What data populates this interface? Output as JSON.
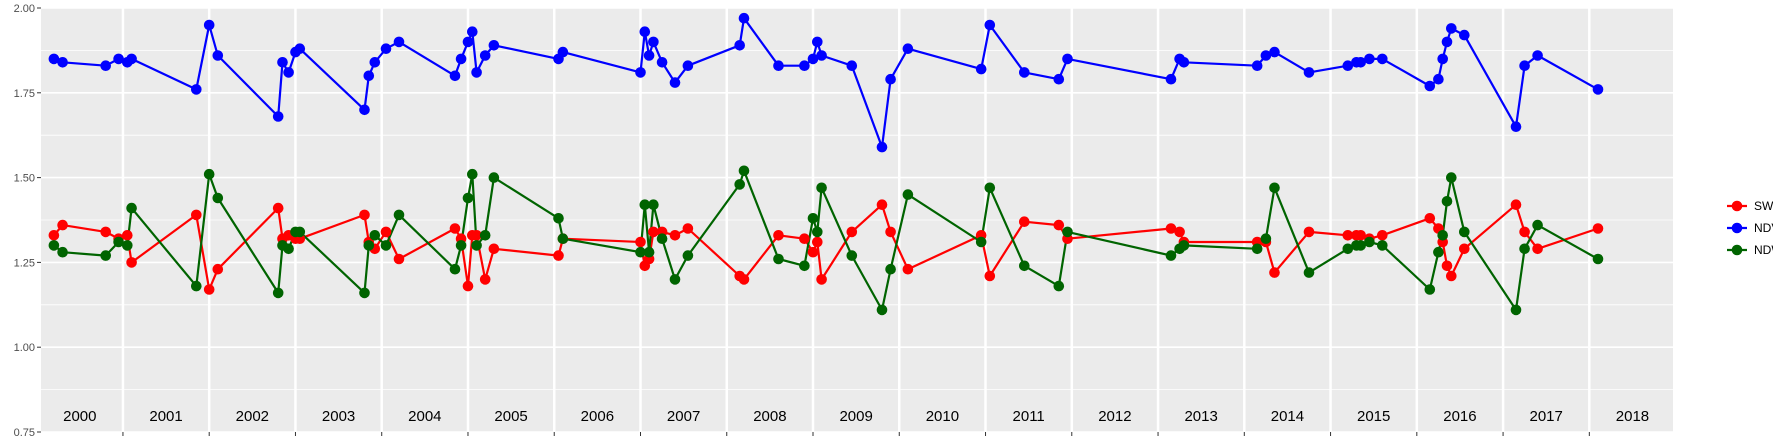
{
  "chart_data": {
    "type": "line",
    "title": "",
    "xlabel": "",
    "ylabel": "",
    "ylim": [
      0.75,
      2.0
    ],
    "xlim": [
      1999.55,
      2018.47
    ],
    "y_ticks": [
      "0.75",
      "1.00",
      "1.25",
      "1.50",
      "1.75",
      "2.00"
    ],
    "x_ticks": [
      "2000",
      "2001",
      "2002",
      "2003",
      "2004",
      "2005",
      "2006",
      "2007",
      "2008",
      "2009",
      "2010",
      "2011",
      "2012",
      "2013",
      "2014",
      "2015",
      "2016",
      "2017",
      "2018"
    ],
    "grid": true,
    "legend_position": "right",
    "series": [
      {
        "name": "SWIR",
        "color": "#ff0000",
        "points": [
          [
            1999.7,
            1.33
          ],
          [
            1999.8,
            1.36
          ],
          [
            2000.3,
            1.34
          ],
          [
            2000.45,
            1.32
          ],
          [
            2000.55,
            1.33
          ],
          [
            2000.6,
            1.25
          ],
          [
            2001.35,
            1.39
          ],
          [
            2001.5,
            1.17
          ],
          [
            2001.6,
            1.23
          ],
          [
            2002.3,
            1.41
          ],
          [
            2002.35,
            1.32
          ],
          [
            2002.42,
            1.33
          ],
          [
            2002.5,
            1.32
          ],
          [
            2002.55,
            1.32
          ],
          [
            2003.3,
            1.39
          ],
          [
            2003.35,
            1.31
          ],
          [
            2003.42,
            1.29
          ],
          [
            2003.55,
            1.34
          ],
          [
            2003.7,
            1.26
          ],
          [
            2004.35,
            1.35
          ],
          [
            2004.42,
            1.32
          ],
          [
            2004.5,
            1.18
          ],
          [
            2004.55,
            1.33
          ],
          [
            2004.6,
            1.33
          ],
          [
            2004.7,
            1.2
          ],
          [
            2004.8,
            1.29
          ],
          [
            2005.55,
            1.27
          ],
          [
            2005.6,
            1.32
          ],
          [
            2006.5,
            1.31
          ],
          [
            2006.55,
            1.24
          ],
          [
            2006.6,
            1.26
          ],
          [
            2006.65,
            1.34
          ],
          [
            2006.75,
            1.34
          ],
          [
            2006.9,
            1.33
          ],
          [
            2007.05,
            1.35
          ],
          [
            2007.65,
            1.21
          ],
          [
            2007.7,
            1.2
          ],
          [
            2008.1,
            1.33
          ],
          [
            2008.4,
            1.32
          ],
          [
            2008.5,
            1.28
          ],
          [
            2008.55,
            1.31
          ],
          [
            2008.6,
            1.2
          ],
          [
            2008.95,
            1.34
          ],
          [
            2009.3,
            1.42
          ],
          [
            2009.4,
            1.34
          ],
          [
            2009.6,
            1.23
          ],
          [
            2010.45,
            1.33
          ],
          [
            2010.55,
            1.21
          ],
          [
            2010.95,
            1.37
          ],
          [
            2011.35,
            1.36
          ],
          [
            2011.45,
            1.32
          ],
          [
            2012.65,
            1.35
          ],
          [
            2012.75,
            1.34
          ],
          [
            2012.8,
            1.31
          ],
          [
            2013.65,
            1.31
          ],
          [
            2013.75,
            1.31
          ],
          [
            2013.85,
            1.22
          ],
          [
            2014.25,
            1.34
          ],
          [
            2014.7,
            1.33
          ],
          [
            2014.8,
            1.33
          ],
          [
            2014.85,
            1.33
          ],
          [
            2014.95,
            1.32
          ],
          [
            2015.1,
            1.33
          ],
          [
            2015.65,
            1.38
          ],
          [
            2015.75,
            1.35
          ],
          [
            2015.8,
            1.31
          ],
          [
            2015.85,
            1.24
          ],
          [
            2015.9,
            1.21
          ],
          [
            2016.05,
            1.29
          ],
          [
            2016.65,
            1.42
          ],
          [
            2016.75,
            1.34
          ],
          [
            2016.9,
            1.29
          ],
          [
            2017.6,
            1.35
          ]
        ]
      },
      {
        "name": "NDVI",
        "color": "#0000ff",
        "points": [
          [
            1999.7,
            1.85
          ],
          [
            1999.8,
            1.84
          ],
          [
            2000.3,
            1.83
          ],
          [
            2000.45,
            1.85
          ],
          [
            2000.55,
            1.84
          ],
          [
            2000.6,
            1.85
          ],
          [
            2001.35,
            1.76
          ],
          [
            2001.5,
            1.95
          ],
          [
            2001.6,
            1.86
          ],
          [
            2002.3,
            1.68
          ],
          [
            2002.35,
            1.84
          ],
          [
            2002.42,
            1.81
          ],
          [
            2002.5,
            1.87
          ],
          [
            2002.55,
            1.88
          ],
          [
            2003.3,
            1.7
          ],
          [
            2003.35,
            1.8
          ],
          [
            2003.42,
            1.84
          ],
          [
            2003.55,
            1.88
          ],
          [
            2003.7,
            1.9
          ],
          [
            2004.35,
            1.8
          ],
          [
            2004.42,
            1.85
          ],
          [
            2004.5,
            1.9
          ],
          [
            2004.55,
            1.93
          ],
          [
            2004.6,
            1.81
          ],
          [
            2004.7,
            1.86
          ],
          [
            2004.8,
            1.89
          ],
          [
            2005.55,
            1.85
          ],
          [
            2005.6,
            1.87
          ],
          [
            2006.5,
            1.81
          ],
          [
            2006.55,
            1.93
          ],
          [
            2006.6,
            1.86
          ],
          [
            2006.65,
            1.9
          ],
          [
            2006.75,
            1.84
          ],
          [
            2006.9,
            1.78
          ],
          [
            2007.05,
            1.83
          ],
          [
            2007.65,
            1.89
          ],
          [
            2007.7,
            1.97
          ],
          [
            2008.1,
            1.83
          ],
          [
            2008.4,
            1.83
          ],
          [
            2008.5,
            1.85
          ],
          [
            2008.55,
            1.9
          ],
          [
            2008.6,
            1.86
          ],
          [
            2008.95,
            1.83
          ],
          [
            2009.3,
            1.59
          ],
          [
            2009.4,
            1.79
          ],
          [
            2009.6,
            1.88
          ],
          [
            2010.45,
            1.82
          ],
          [
            2010.55,
            1.95
          ],
          [
            2010.95,
            1.81
          ],
          [
            2011.35,
            1.79
          ],
          [
            2011.45,
            1.85
          ],
          [
            2012.65,
            1.79
          ],
          [
            2012.75,
            1.85
          ],
          [
            2012.8,
            1.84
          ],
          [
            2013.65,
            1.83
          ],
          [
            2013.75,
            1.86
          ],
          [
            2013.85,
            1.87
          ],
          [
            2014.25,
            1.81
          ],
          [
            2014.7,
            1.83
          ],
          [
            2014.8,
            1.84
          ],
          [
            2014.85,
            1.84
          ],
          [
            2014.95,
            1.85
          ],
          [
            2015.1,
            1.85
          ],
          [
            2015.65,
            1.77
          ],
          [
            2015.75,
            1.79
          ],
          [
            2015.8,
            1.85
          ],
          [
            2015.85,
            1.9
          ],
          [
            2015.9,
            1.94
          ],
          [
            2016.05,
            1.92
          ],
          [
            2016.65,
            1.65
          ],
          [
            2016.75,
            1.83
          ],
          [
            2016.9,
            1.86
          ],
          [
            2017.6,
            1.76
          ]
        ]
      },
      {
        "name": "NDWI",
        "color": "#006400",
        "points": [
          [
            1999.7,
            1.3
          ],
          [
            1999.8,
            1.28
          ],
          [
            2000.3,
            1.27
          ],
          [
            2000.45,
            1.31
          ],
          [
            2000.55,
            1.3
          ],
          [
            2000.6,
            1.41
          ],
          [
            2001.35,
            1.18
          ],
          [
            2001.5,
            1.51
          ],
          [
            2001.6,
            1.44
          ],
          [
            2002.3,
            1.16
          ],
          [
            2002.35,
            1.3
          ],
          [
            2002.42,
            1.29
          ],
          [
            2002.5,
            1.34
          ],
          [
            2002.55,
            1.34
          ],
          [
            2003.3,
            1.16
          ],
          [
            2003.35,
            1.3
          ],
          [
            2003.42,
            1.33
          ],
          [
            2003.55,
            1.3
          ],
          [
            2003.7,
            1.39
          ],
          [
            2004.35,
            1.23
          ],
          [
            2004.42,
            1.3
          ],
          [
            2004.5,
            1.44
          ],
          [
            2004.55,
            1.51
          ],
          [
            2004.6,
            1.3
          ],
          [
            2004.7,
            1.33
          ],
          [
            2004.8,
            1.5
          ],
          [
            2005.55,
            1.38
          ],
          [
            2005.6,
            1.32
          ],
          [
            2006.5,
            1.28
          ],
          [
            2006.55,
            1.42
          ],
          [
            2006.6,
            1.28
          ],
          [
            2006.65,
            1.42
          ],
          [
            2006.75,
            1.32
          ],
          [
            2006.9,
            1.2
          ],
          [
            2007.05,
            1.27
          ],
          [
            2007.65,
            1.48
          ],
          [
            2007.7,
            1.52
          ],
          [
            2008.1,
            1.26
          ],
          [
            2008.4,
            1.24
          ],
          [
            2008.5,
            1.38
          ],
          [
            2008.55,
            1.34
          ],
          [
            2008.6,
            1.47
          ],
          [
            2008.95,
            1.27
          ],
          [
            2009.3,
            1.11
          ],
          [
            2009.4,
            1.23
          ],
          [
            2009.6,
            1.45
          ],
          [
            2010.45,
            1.31
          ],
          [
            2010.55,
            1.47
          ],
          [
            2010.95,
            1.24
          ],
          [
            2011.35,
            1.18
          ],
          [
            2011.45,
            1.34
          ],
          [
            2012.65,
            1.27
          ],
          [
            2012.75,
            1.29
          ],
          [
            2012.8,
            1.3
          ],
          [
            2013.65,
            1.29
          ],
          [
            2013.75,
            1.32
          ],
          [
            2013.85,
            1.47
          ],
          [
            2014.25,
            1.22
          ],
          [
            2014.7,
            1.29
          ],
          [
            2014.8,
            1.3
          ],
          [
            2014.85,
            1.3
          ],
          [
            2014.95,
            1.31
          ],
          [
            2015.1,
            1.3
          ],
          [
            2015.65,
            1.17
          ],
          [
            2015.75,
            1.28
          ],
          [
            2015.8,
            1.33
          ],
          [
            2015.85,
            1.43
          ],
          [
            2015.9,
            1.5
          ],
          [
            2016.05,
            1.34
          ],
          [
            2016.65,
            1.11
          ],
          [
            2016.75,
            1.29
          ],
          [
            2016.9,
            1.36
          ],
          [
            2017.6,
            1.26
          ]
        ]
      }
    ]
  }
}
